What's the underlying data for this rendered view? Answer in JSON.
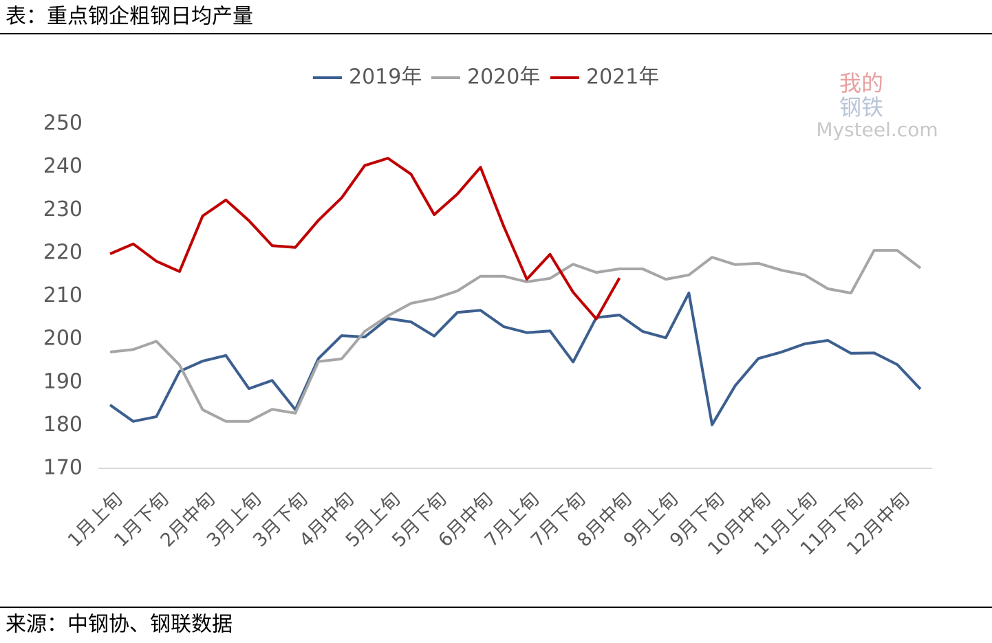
{
  "title": "表：重点钢企粗钢日均产量",
  "source": "来源：中钢协、钢联数据",
  "watermark": {
    "top": "我的",
    "middle": "钢铁",
    "bottom": "Mysteel.com"
  },
  "chart_data": {
    "type": "line",
    "categories": [
      "1月上旬",
      null,
      "1月下旬",
      null,
      "2月中旬",
      null,
      "3月上旬",
      null,
      "3月下旬",
      null,
      "4月中旬",
      null,
      "5月上旬",
      null,
      "5月下旬",
      null,
      "6月中旬",
      null,
      "7月上旬",
      null,
      "7月下旬",
      null,
      "8月中旬",
      null,
      "9月上旬",
      null,
      "9月下旬",
      null,
      "10月中旬",
      null,
      "11月上旬",
      null,
      "11月下旬",
      null,
      "12月中旬",
      null
    ],
    "series": [
      {
        "name": "2019年",
        "color": "#3c5f8f",
        "values": [
          184.7,
          180.9,
          182.0,
          192.5,
          194.9,
          196.2,
          188.5,
          190.4,
          183.6,
          195.5,
          200.8,
          200.5,
          204.8,
          204.0,
          200.7,
          206.2,
          206.7,
          202.9,
          201.5,
          201.9,
          194.7,
          205.0,
          205.6,
          201.8,
          200.3,
          210.7,
          180.1,
          189.2,
          195.5,
          197.0,
          198.9,
          199.7,
          196.7,
          196.8,
          194.1,
          188.4
        ]
      },
      {
        "name": "2020年",
        "color": "#a6a6a6",
        "values": [
          197.0,
          197.6,
          199.5,
          194.0,
          183.6,
          180.9,
          180.9,
          183.7,
          182.8,
          194.8,
          195.4,
          201.8,
          205.4,
          208.3,
          209.4,
          211.2,
          214.6,
          214.6,
          213.3,
          214.1,
          217.4,
          215.5,
          216.3,
          216.3,
          213.9,
          214.9,
          219.0,
          217.3,
          217.6,
          216.0,
          214.9,
          211.7,
          210.7,
          220.6,
          220.6,
          216.5
        ]
      },
      {
        "name": "2021年",
        "color": "#c00000",
        "values": [
          219.8,
          222.1,
          218.1,
          215.7,
          228.6,
          232.3,
          227.5,
          221.7,
          221.3,
          227.6,
          232.8,
          240.3,
          242.0,
          238.3,
          228.9,
          233.7,
          239.9,
          226.2,
          213.9,
          219.7,
          210.9,
          204.7,
          214.2,
          null,
          null,
          null,
          null,
          null,
          null,
          null,
          null,
          null,
          null,
          null,
          null,
          null
        ]
      }
    ],
    "ylim": [
      170,
      250
    ],
    "yticks": [
      170,
      180,
      190,
      200,
      210,
      220,
      230,
      240,
      250
    ],
    "legend": "top"
  }
}
